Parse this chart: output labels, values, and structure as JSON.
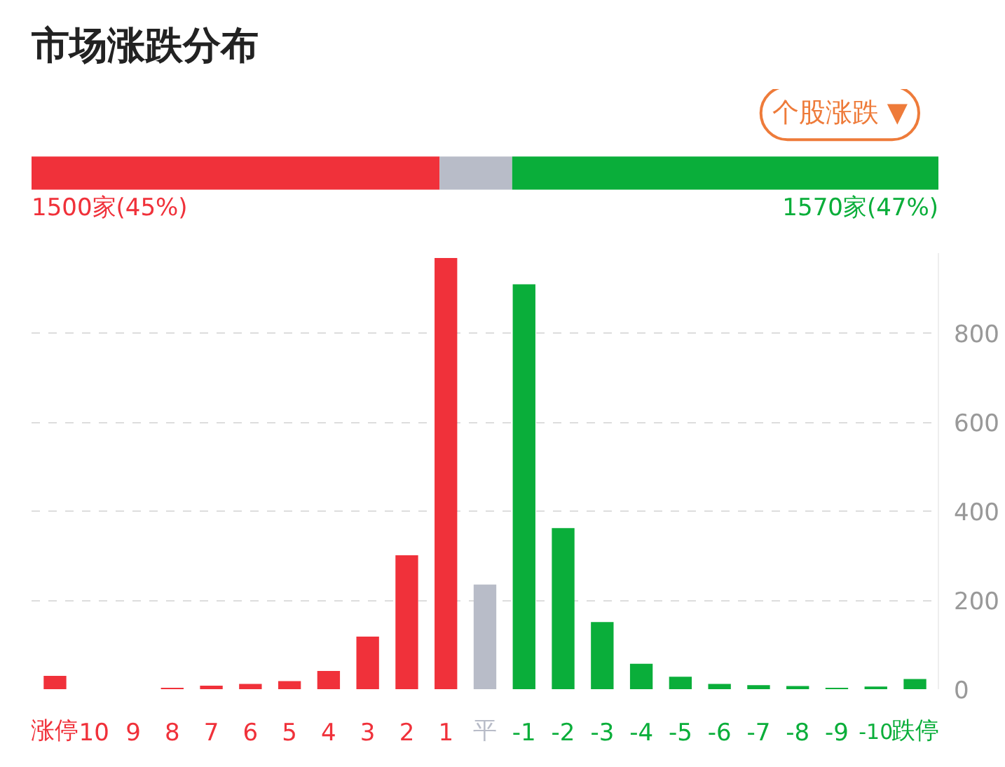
{
  "chart_data": [
    {
      "type": "bar",
      "title": "市场涨跌分布",
      "annotations": [
        "个股涨跌 ▼"
      ],
      "orientation": "horizontal",
      "stacked": true,
      "categories": [
        null
      ],
      "xlim": [
        0,
        100
      ],
      "tick_labels": false,
      "grid": false,
      "series": [
        {
          "color": "#f0313a",
          "values": [
            45
          ],
          "value_labels": [
            "1500家(45%)"
          ]
        },
        {
          "color": "#b8bcc8",
          "values": [
            8
          ],
          "value_labels": [
            null
          ]
        },
        {
          "color": "#0aae3a",
          "values": [
            47
          ],
          "value_labels": [
            "1570家(47%)"
          ]
        }
      ]
    },
    {
      "type": "bar",
      "categories": [
        "涨停",
        "10",
        "9",
        "8",
        "7",
        "6",
        "5",
        "4",
        "3",
        "2",
        "1",
        "平",
        "-1",
        "-2",
        "-3",
        "-4",
        "-5",
        "-6",
        "-7",
        "-8",
        "-9",
        "-10",
        "跌停"
      ],
      "values": [
        30,
        0,
        0,
        3,
        8,
        12,
        18,
        41,
        118,
        301,
        969,
        235,
        910,
        362,
        151,
        57,
        28,
        12,
        9,
        7,
        3,
        6,
        23
      ],
      "colors": [
        "#f0313a",
        "#f0313a",
        "#f0313a",
        "#f0313a",
        "#f0313a",
        "#f0313a",
        "#f0313a",
        "#f0313a",
        "#f0313a",
        "#f0313a",
        "#f0313a",
        "#b8bcc8",
        "#0aae3a",
        "#0aae3a",
        "#0aae3a",
        "#0aae3a",
        "#0aae3a",
        "#0aae3a",
        "#0aae3a",
        "#0aae3a",
        "#0aae3a",
        "#0aae3a",
        "#0aae3a"
      ],
      "ylim": [
        0,
        980
      ],
      "yticks": [
        0,
        200,
        400,
        600,
        800
      ],
      "grid": "y"
    }
  ]
}
